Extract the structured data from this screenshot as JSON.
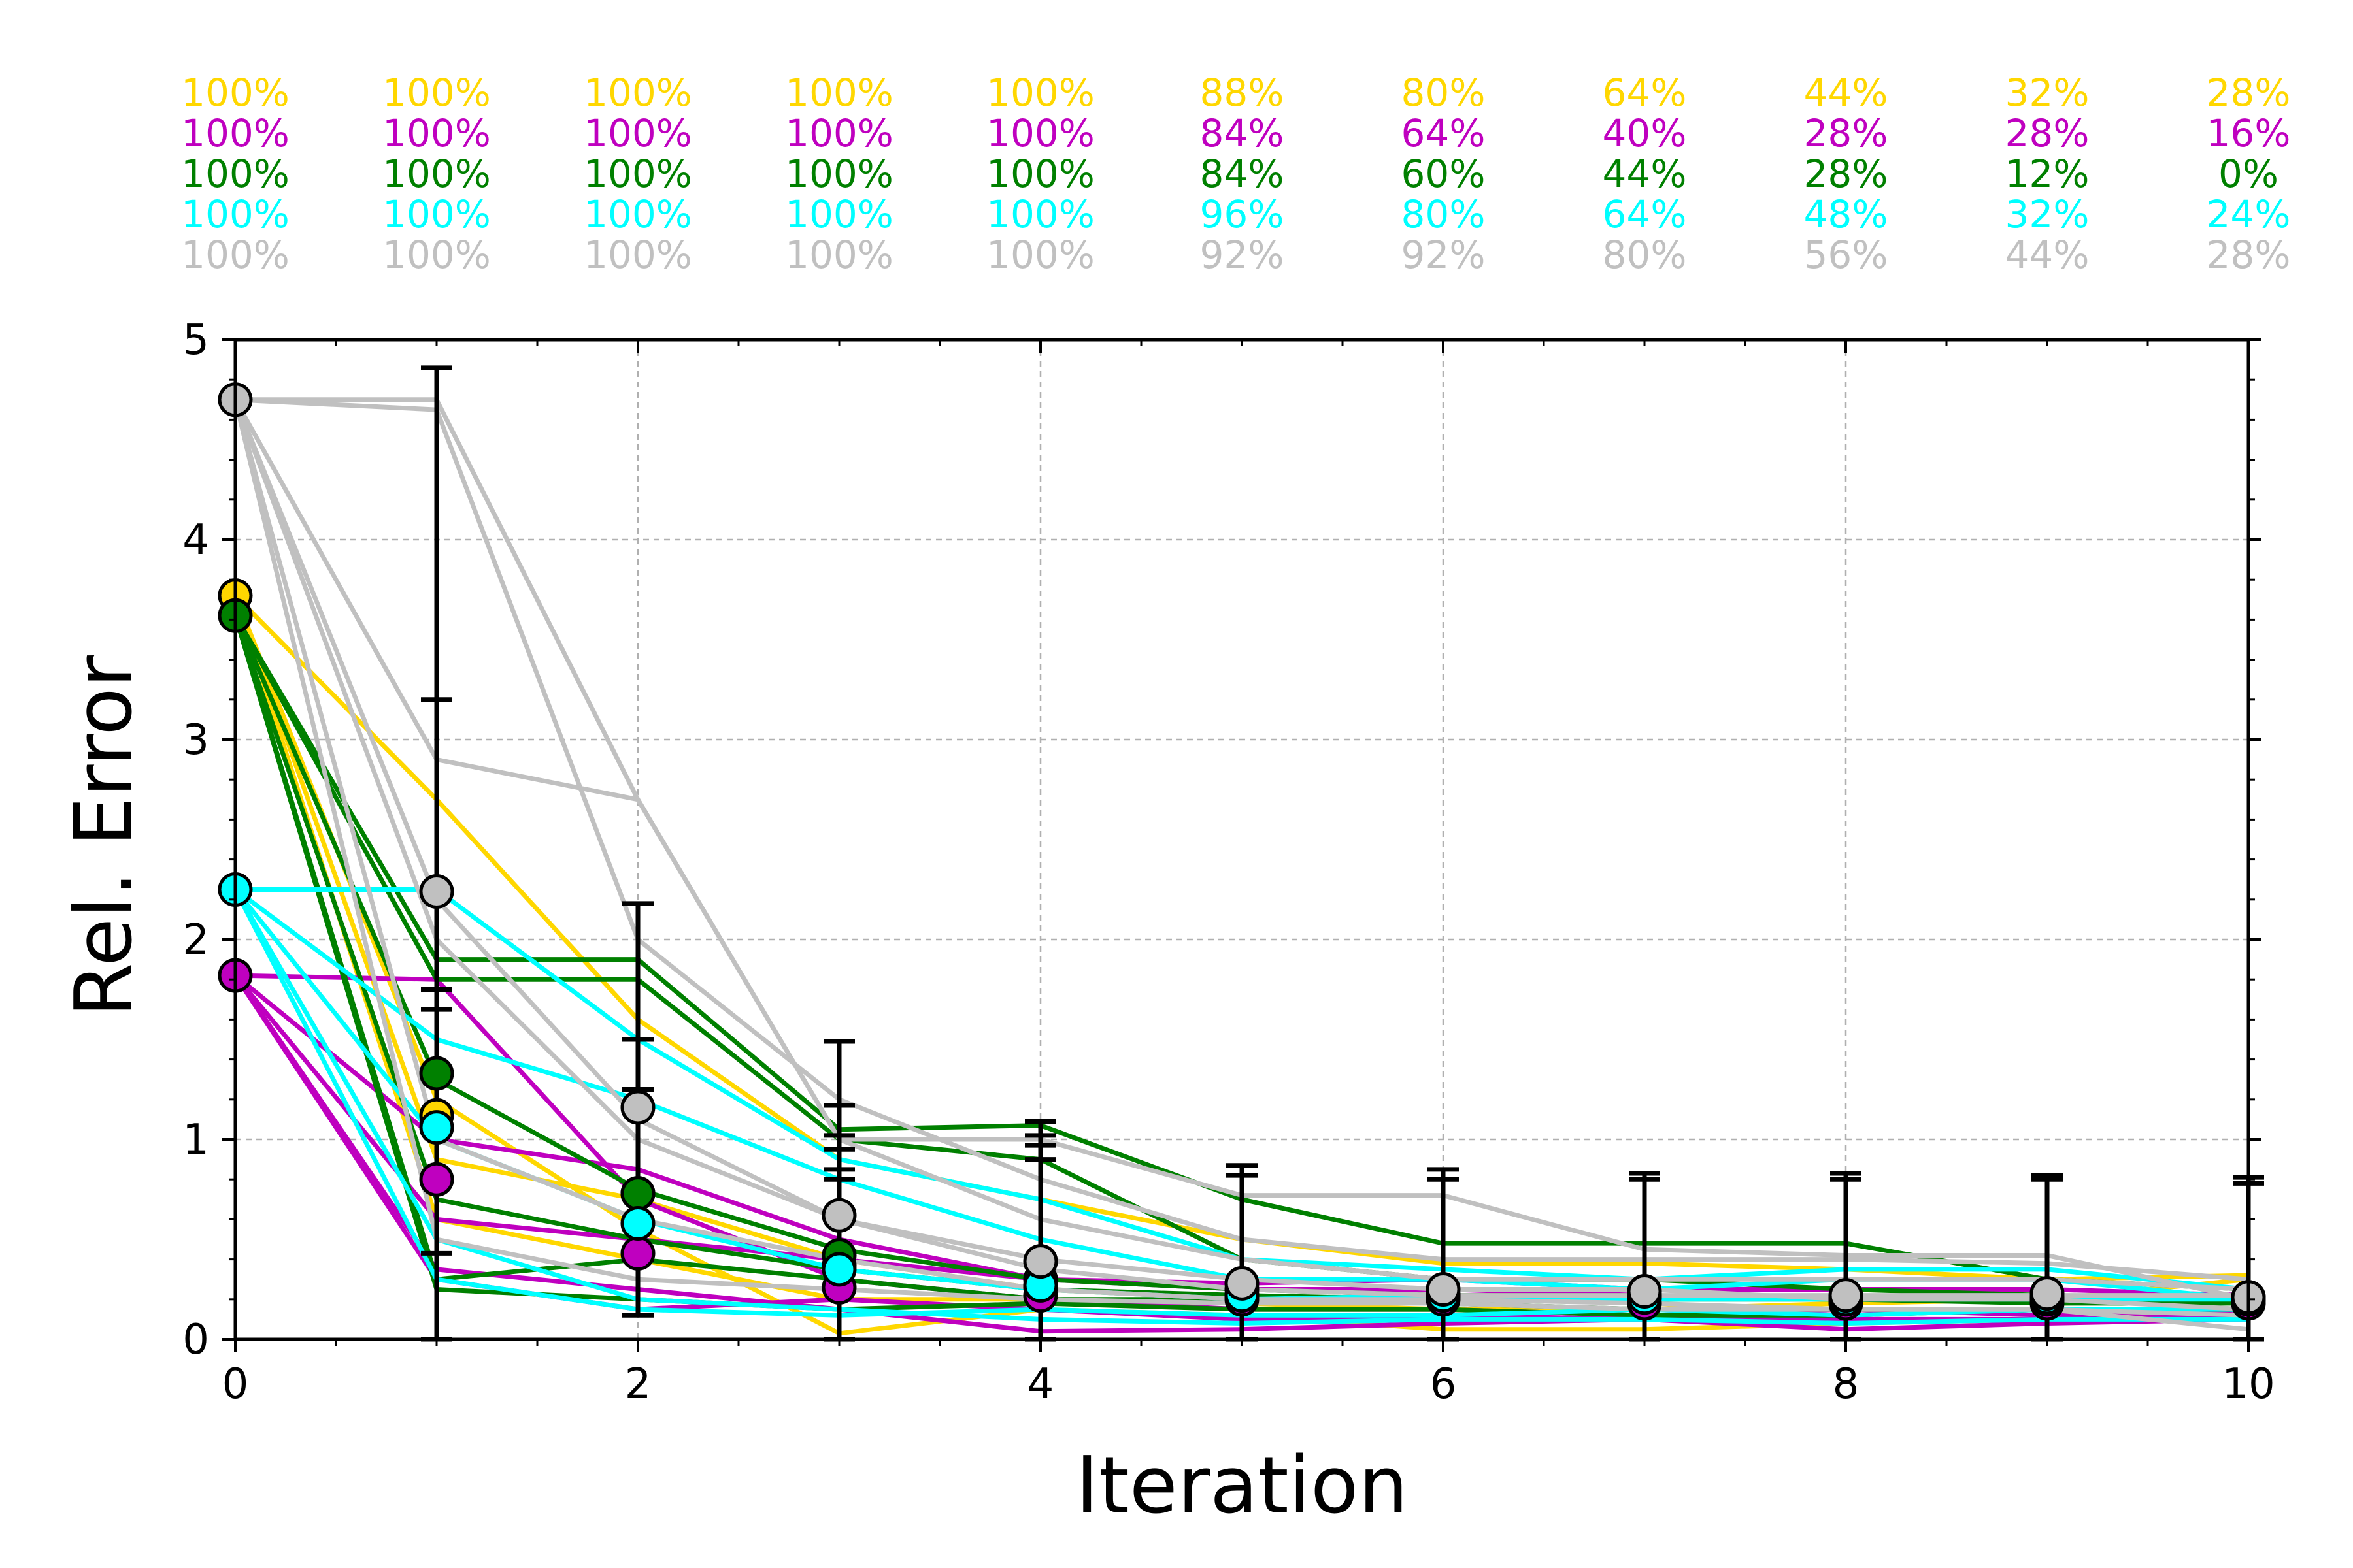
{
  "chart_data": {
    "type": "line",
    "xlabel": "Iteration",
    "ylabel": "Rel. Error",
    "xlim": [
      0,
      10
    ],
    "ylim": [
      0,
      5
    ],
    "xticks": [
      "0",
      "2",
      "4",
      "6",
      "8",
      "10"
    ],
    "yticks": [
      "0",
      "1",
      "2",
      "3",
      "4",
      "5"
    ],
    "grid": true,
    "x": [
      0,
      1,
      2,
      3,
      4,
      5,
      6,
      7,
      8,
      9,
      10
    ],
    "series": [
      {
        "name": "yellow",
        "color": "#FFD700",
        "percent_labels": [
          "100%",
          "100%",
          "100%",
          "100%",
          "100%",
          "88%",
          "80%",
          "64%",
          "44%",
          "32%",
          "28%"
        ],
        "mean": [
          3.72,
          1.12,
          0.73,
          0.37,
          0.26,
          0.22,
          0.22,
          0.21,
          0.2,
          0.2,
          0.21
        ],
        "runs": [
          [
            3.72,
            2.7,
            1.6,
            0.9,
            0.7,
            0.5,
            0.38,
            0.38,
            0.35,
            0.3,
            0.32
          ],
          [
            3.72,
            1.2,
            0.55,
            0.03,
            0.15,
            0.12,
            0.05,
            0.05,
            0.08,
            0.1,
            0.12
          ],
          [
            3.72,
            0.9,
            0.7,
            0.4,
            0.25,
            0.2,
            0.22,
            0.2,
            0.22,
            0.18,
            0.2
          ],
          [
            3.72,
            0.6,
            0.4,
            0.2,
            0.2,
            0.18,
            0.15,
            0.15,
            0.18,
            0.2,
            0.3
          ]
        ]
      },
      {
        "name": "magenta",
        "color": "#BF00BF",
        "percent_labels": [
          "100%",
          "100%",
          "100%",
          "100%",
          "100%",
          "84%",
          "64%",
          "40%",
          "28%",
          "28%",
          "16%"
        ],
        "mean": [
          1.82,
          0.8,
          0.43,
          0.26,
          0.22,
          0.2,
          0.2,
          0.18,
          0.18,
          0.18,
          0.18
        ],
        "runs": [
          [
            1.82,
            0.35,
            0.25,
            0.15,
            0.04,
            0.05,
            0.08,
            0.1,
            0.05,
            0.08,
            0.1
          ],
          [
            1.82,
            1.8,
            0.7,
            0.3,
            0.2,
            0.15,
            0.15,
            0.12,
            0.15,
            0.12,
            0.12
          ],
          [
            1.82,
            0.6,
            0.5,
            0.4,
            0.3,
            0.25,
            0.25,
            0.22,
            0.2,
            0.22,
            0.2
          ],
          [
            1.82,
            0.3,
            0.15,
            0.2,
            0.15,
            0.1,
            0.12,
            0.1,
            0.1,
            0.1,
            0.15
          ],
          [
            1.82,
            1.0,
            0.85,
            0.5,
            0.3,
            0.28,
            0.3,
            0.25,
            0.25,
            0.25,
            0.22
          ]
        ]
      },
      {
        "name": "green",
        "color": "#008000",
        "percent_labels": [
          "100%",
          "100%",
          "100%",
          "100%",
          "100%",
          "84%",
          "60%",
          "44%",
          "28%",
          "12%",
          "0%"
        ],
        "mean": [
          3.62,
          1.33,
          0.73,
          0.42,
          0.3,
          0.25,
          0.22,
          0.22,
          0.2,
          0.2,
          0.2
        ],
        "runs": [
          [
            3.62,
            1.9,
            1.9,
            1.05,
            1.07,
            0.7,
            0.48,
            0.48,
            0.48,
            0.3,
            0.25
          ],
          [
            3.62,
            1.8,
            1.8,
            1.0,
            0.9,
            0.4,
            0.3,
            0.3,
            0.25,
            0.22,
            0.2
          ],
          [
            3.62,
            0.3,
            0.4,
            0.3,
            0.2,
            0.2,
            0.18,
            0.15,
            0.15,
            0.15,
            0.15
          ],
          [
            3.62,
            0.25,
            0.2,
            0.15,
            0.18,
            0.15,
            0.15,
            0.12,
            0.12,
            0.15,
            0.15
          ],
          [
            3.62,
            1.3,
            0.75,
            0.45,
            0.3,
            0.25,
            0.22,
            0.22,
            0.2,
            0.2,
            0.2
          ],
          [
            3.62,
            0.7,
            0.5,
            0.35,
            0.25,
            0.22,
            0.2,
            0.2,
            0.2,
            0.18,
            0.18
          ]
        ]
      },
      {
        "name": "cyan",
        "color": "#00FFFF",
        "percent_labels": [
          "100%",
          "100%",
          "100%",
          "100%",
          "100%",
          "96%",
          "80%",
          "64%",
          "48%",
          "32%",
          "24%"
        ],
        "mean": [
          2.25,
          1.06,
          0.58,
          0.35,
          0.27,
          0.22,
          0.22,
          0.21,
          0.2,
          0.21,
          0.2
        ],
        "runs": [
          [
            2.25,
            2.25,
            1.5,
            0.9,
            0.7,
            0.4,
            0.35,
            0.3,
            0.35,
            0.35,
            0.25
          ],
          [
            2.25,
            1.5,
            1.2,
            0.8,
            0.5,
            0.3,
            0.3,
            0.25,
            0.3,
            0.3,
            0.2
          ],
          [
            2.25,
            0.5,
            0.2,
            0.15,
            0.1,
            0.08,
            0.1,
            0.1,
            0.08,
            0.1,
            0.1
          ],
          [
            2.25,
            0.3,
            0.15,
            0.12,
            0.15,
            0.12,
            0.12,
            0.15,
            0.12,
            0.15,
            0.15
          ],
          [
            2.25,
            1.0,
            0.6,
            0.35,
            0.25,
            0.2,
            0.22,
            0.2,
            0.2,
            0.2,
            0.2
          ]
        ]
      },
      {
        "name": "gray",
        "color": "#C0C0C0",
        "percent_labels": [
          "100%",
          "100%",
          "100%",
          "100%",
          "100%",
          "92%",
          "92%",
          "80%",
          "56%",
          "44%",
          "28%"
        ],
        "mean": [
          4.7,
          2.24,
          1.16,
          0.62,
          0.39,
          0.28,
          0.25,
          0.24,
          0.22,
          0.23,
          0.21
        ],
        "runs": [
          [
            4.7,
            4.7,
            2.7,
            1.0,
            1.0,
            0.72,
            0.72,
            0.45,
            0.42,
            0.42,
            0.2
          ],
          [
            4.7,
            4.65,
            2.0,
            1.2,
            0.8,
            0.5,
            0.4,
            0.4,
            0.4,
            0.38,
            0.3
          ],
          [
            4.7,
            2.9,
            2.7,
            1.0,
            0.6,
            0.4,
            0.3,
            0.3,
            0.3,
            0.3,
            0.25
          ],
          [
            4.7,
            2.0,
            1.0,
            0.6,
            0.4,
            0.3,
            0.25,
            0.25,
            0.2,
            0.2,
            0.15
          ],
          [
            4.7,
            1.0,
            0.6,
            0.4,
            0.25,
            0.2,
            0.2,
            0.18,
            0.15,
            0.15,
            0.05
          ],
          [
            4.7,
            0.5,
            0.3,
            0.25,
            0.2,
            0.18,
            0.18,
            0.15,
            0.15,
            0.15,
            0.12
          ],
          [
            4.7,
            2.2,
            1.1,
            0.6,
            0.35,
            0.25,
            0.22,
            0.22,
            0.22,
            0.22,
            0.22
          ]
        ]
      }
    ],
    "errorbars": {
      "color": "#000000",
      "upper": [
        4.7,
        4.86,
        2.18,
        1.49,
        1.09,
        0.87,
        0.85,
        0.83,
        0.83,
        0.82,
        0.81
      ],
      "lower": [
        4.7,
        0.0,
        0.12,
        0.0,
        0.0,
        0.0,
        0.0,
        0.0,
        0.0,
        0.0,
        0.0
      ],
      "inner_caps": [
        [],
        [
          3.2,
          1.75,
          1.65,
          0.43
        ],
        [
          1.5,
          1.25,
          0.4
        ],
        [
          1.17,
          1.02,
          0.95,
          0.85,
          0.8
        ],
        [
          1.02,
          0.97,
          0.9
        ],
        [
          0.82
        ],
        [
          0.8
        ],
        [
          0.8
        ],
        [
          0.8
        ],
        [
          0.8
        ],
        [
          0.78
        ]
      ]
    }
  }
}
